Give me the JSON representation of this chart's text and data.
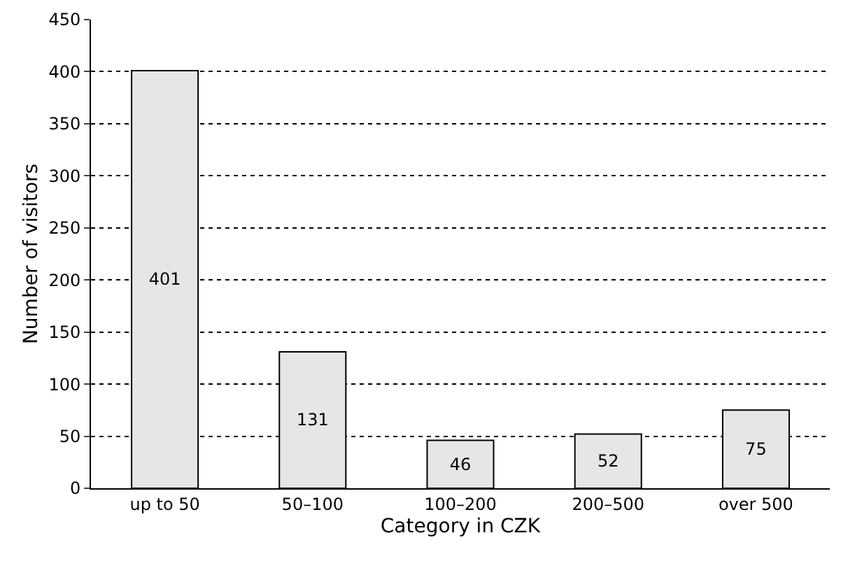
{
  "chart_data": {
    "type": "bar",
    "xlabel": "Category in CZK",
    "ylabel": "Number of visitors",
    "categories": [
      "up to 50",
      "50–100",
      "100–200",
      "200–500",
      "over 500"
    ],
    "values": [
      401,
      131,
      46,
      52,
      75
    ],
    "color": "#e6e6e6",
    "ylim": [
      0,
      450
    ],
    "yticks": [
      0,
      50,
      100,
      150,
      200,
      250,
      300,
      350,
      400,
      450
    ],
    "grid": "y",
    "data_labels": true,
    "legend": false
  }
}
